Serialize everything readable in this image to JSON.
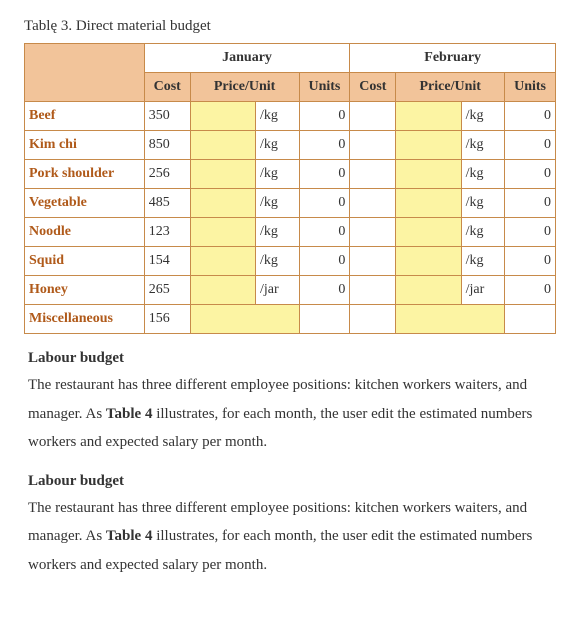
{
  "caption": "Tablę 3. Direct material budget",
  "months": [
    "January",
    "February"
  ],
  "subheaders": [
    "Cost",
    "Price/Unit",
    "Units"
  ],
  "col_widths": {
    "item": 99,
    "cost": 38,
    "price": 54,
    "unitlabel": 36,
    "units": 42
  },
  "rows": [
    {
      "item": "Beef",
      "cost": "350",
      "jan_price": "",
      "jan_unitlabel": "/kg",
      "jan_units": "0",
      "feb_price": "",
      "feb_unitlabel": "/kg",
      "feb_units": "0"
    },
    {
      "item": "Kim chi",
      "cost": "850",
      "jan_price": "",
      "jan_unitlabel": "/kg",
      "jan_units": "0",
      "feb_price": "",
      "feb_unitlabel": "/kg",
      "feb_units": "0"
    },
    {
      "item": "Pork shoulder",
      "cost": "256",
      "jan_price": "",
      "jan_unitlabel": "/kg",
      "jan_units": "0",
      "feb_price": "",
      "feb_unitlabel": "/kg",
      "feb_units": "0"
    },
    {
      "item": "Vegetable",
      "cost": "485",
      "jan_price": "",
      "jan_unitlabel": "/kg",
      "jan_units": "0",
      "feb_price": "",
      "feb_unitlabel": "/kg",
      "feb_units": "0"
    },
    {
      "item": "Noodle",
      "cost": "123",
      "jan_price": "",
      "jan_unitlabel": "/kg",
      "jan_units": "0",
      "feb_price": "",
      "feb_unitlabel": "/kg",
      "feb_units": "0"
    },
    {
      "item": "Squid",
      "cost": "154",
      "jan_price": "",
      "jan_unitlabel": "/kg",
      "jan_units": "0",
      "feb_price": "",
      "feb_unitlabel": "/kg",
      "feb_units": "0"
    },
    {
      "item": "Honey",
      "cost": "265",
      "jan_price": "",
      "jan_unitlabel": "/jar",
      "jan_units": "0",
      "feb_price": "",
      "feb_unitlabel": "/jar",
      "feb_units": "0"
    },
    {
      "item": "Miscellaneous",
      "cost": "156",
      "jan_price": "",
      "jan_unitlabel": "",
      "jan_units": "",
      "feb_price": "",
      "feb_unitlabel": "",
      "feb_units": "",
      "misc": true
    }
  ],
  "sections": [
    {
      "head": "Labour budget",
      "para_before": "The restaurant has three different employee positions: kitchen workers waiters, and manager. As ",
      "bold": "Table 4",
      "para_after": " illustrates, for each month, the user edit the estimated numbers workers and expected salary per month."
    },
    {
      "head": "Labour budget",
      "para_before": "The restaurant has three different employee positions: kitchen workers waiters, and manager. As ",
      "bold": "Table 4",
      "para_after": " illustrates, for each month, the user edit the estimated numbers workers and expected salary per month."
    }
  ],
  "colors": {
    "border": "#c78a4a",
    "header_bg": "#f2c49a",
    "highlight_bg": "#fcf4a3",
    "item_text": "#b05a1a"
  }
}
